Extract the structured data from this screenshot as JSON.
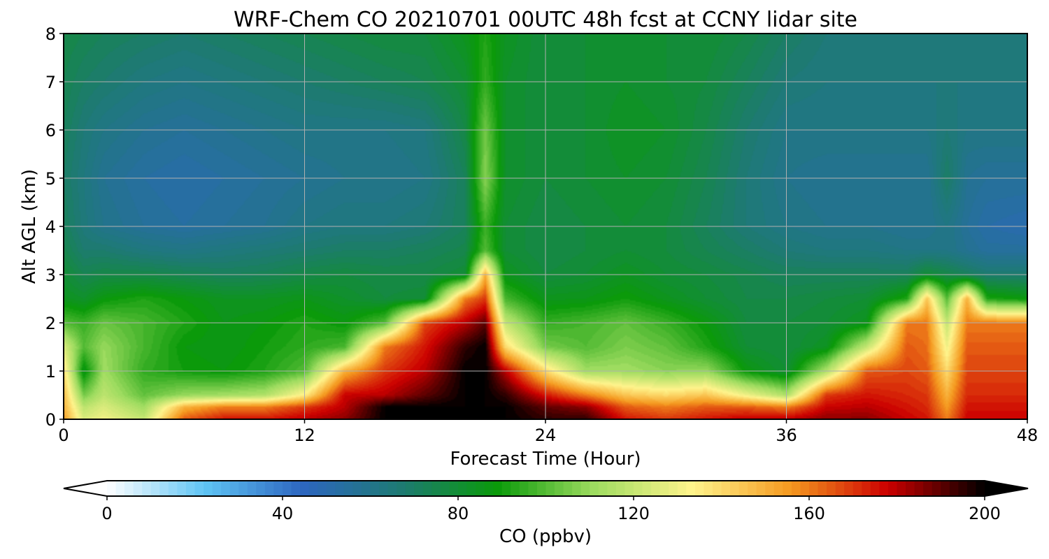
{
  "chart_data": {
    "type": "heatmap",
    "title": "WRF-Chem CO  20210701 00UTC 48h fcst at CCNY lidar site",
    "xlabel": "Forecast Time (Hour)",
    "ylabel": "Alt AGL (km)",
    "x_ticks": [
      "0",
      "12",
      "24",
      "36",
      "48"
    ],
    "y_ticks": [
      "0",
      "1",
      "2",
      "3",
      "4",
      "5",
      "6",
      "7",
      "8"
    ],
    "xlim": [
      0,
      48
    ],
    "ylim": [
      0,
      8
    ],
    "grid": true,
    "colorbar": {
      "label": "CO  (ppbv)",
      "ticks": [
        "0",
        "40",
        "80",
        "120",
        "160",
        "200"
      ],
      "range": [
        0,
        200
      ],
      "extend": "both",
      "orientation": "horizontal",
      "colors": [
        "#ffffff",
        "#5fc4f4",
        "#2d66c0",
        "#1e7a74",
        "#0a9a0a",
        "#9fdc60",
        "#fff48c",
        "#f59a20",
        "#cc0000",
        "#000000"
      ]
    },
    "z_units": "ppbv",
    "x": [
      0,
      1,
      2,
      4,
      6,
      8,
      10,
      12,
      14,
      16,
      18,
      20,
      21,
      22,
      24,
      26,
      28,
      30,
      32,
      34,
      36,
      38,
      40,
      42,
      43,
      44,
      45,
      46,
      48
    ],
    "y": [
      0,
      0.25,
      0.5,
      1,
      1.5,
      2,
      2.5,
      3,
      3.5,
      4,
      5,
      6,
      7,
      8
    ],
    "z": [
      [
        155,
        125,
        130,
        120,
        165,
        175,
        175,
        180,
        185,
        200,
        200,
        200,
        200,
        200,
        195,
        195,
        175,
        170,
        175,
        180,
        180,
        185,
        185,
        178,
        175,
        160,
        178,
        178,
        178
      ],
      [
        150,
        118,
        125,
        112,
        150,
        160,
        160,
        170,
        180,
        200,
        200,
        200,
        200,
        200,
        190,
        185,
        165,
        160,
        165,
        165,
        160,
        178,
        180,
        175,
        172,
        155,
        175,
        175,
        175
      ],
      [
        148,
        105,
        118,
        102,
        110,
        112,
        115,
        135,
        178,
        180,
        190,
        200,
        200,
        195,
        175,
        160,
        145,
        140,
        145,
        130,
        115,
        170,
        175,
        172,
        170,
        150,
        172,
        172,
        172
      ],
      [
        140,
        85,
        112,
        95,
        90,
        88,
        92,
        100,
        150,
        170,
        180,
        200,
        200,
        180,
        140,
        112,
        112,
        108,
        110,
        88,
        80,
        115,
        165,
        168,
        165,
        140,
        168,
        168,
        168
      ],
      [
        125,
        100,
        110,
        98,
        88,
        86,
        90,
        94,
        98,
        160,
        175,
        195,
        200,
        140,
        105,
        100,
        106,
        102,
        92,
        80,
        78,
        84,
        120,
        165,
        162,
        130,
        165,
        165,
        165
      ],
      [
        100,
        96,
        103,
        98,
        92,
        86,
        88,
        92,
        88,
        100,
        168,
        180,
        190,
        120,
        95,
        98,
        102,
        96,
        88,
        78,
        78,
        80,
        85,
        160,
        160,
        120,
        160,
        160,
        160
      ],
      [
        85,
        82,
        88,
        92,
        88,
        84,
        84,
        86,
        82,
        78,
        80,
        160,
        170,
        98,
        85,
        86,
        90,
        85,
        80,
        76,
        76,
        78,
        80,
        92,
        145,
        100,
        150,
        92,
        88
      ],
      [
        80,
        74,
        76,
        76,
        74,
        72,
        73,
        76,
        78,
        76,
        76,
        80,
        150,
        85,
        78,
        80,
        84,
        80,
        78,
        75,
        72,
        72,
        72,
        72,
        80,
        76,
        72,
        68,
        68
      ],
      [
        75,
        68,
        68,
        64,
        62,
        64,
        66,
        68,
        70,
        70,
        72,
        75,
        100,
        80,
        76,
        78,
        80,
        78,
        74,
        70,
        66,
        64,
        64,
        62,
        62,
        62,
        58,
        55,
        55
      ],
      [
        72,
        65,
        60,
        56,
        54,
        56,
        58,
        62,
        64,
        64,
        66,
        72,
        96,
        80,
        76,
        78,
        80,
        78,
        72,
        66,
        62,
        60,
        60,
        58,
        58,
        62,
        56,
        52,
        50
      ],
      [
        70,
        64,
        58,
        54,
        52,
        54,
        56,
        58,
        60,
        60,
        62,
        72,
        108,
        82,
        78,
        80,
        82,
        80,
        74,
        66,
        60,
        58,
        58,
        58,
        58,
        70,
        58,
        56,
        56
      ],
      [
        72,
        66,
        62,
        58,
        56,
        58,
        60,
        62,
        62,
        62,
        64,
        76,
        104,
        82,
        78,
        80,
        84,
        82,
        76,
        68,
        62,
        62,
        62,
        62,
        62,
        66,
        62,
        62,
        62
      ],
      [
        74,
        70,
        68,
        64,
        62,
        64,
        66,
        68,
        70,
        72,
        74,
        80,
        95,
        82,
        78,
        80,
        82,
        80,
        78,
        72,
        66,
        64,
        64,
        64,
        64,
        64,
        64,
        64,
        64
      ],
      [
        76,
        74,
        72,
        70,
        68,
        70,
        72,
        74,
        76,
        78,
        78,
        85,
        92,
        84,
        78,
        80,
        82,
        80,
        80,
        76,
        70,
        66,
        64,
        64,
        64,
        64,
        64,
        64,
        64
      ]
    ]
  }
}
